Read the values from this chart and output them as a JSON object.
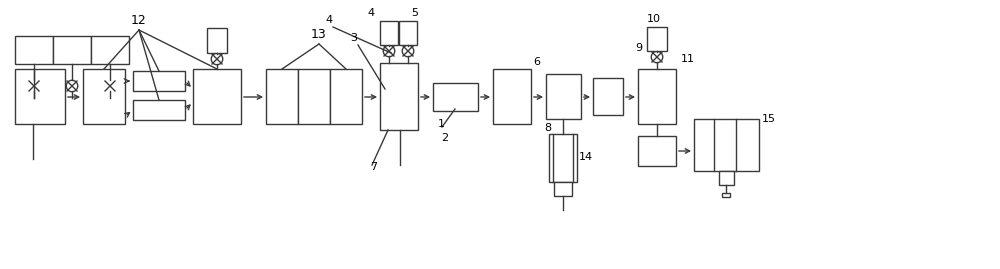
{
  "bg_color": "#ffffff",
  "line_color": "#3a3a3a",
  "label_color": "#000000",
  "figsize": [
    10.0,
    2.69
  ],
  "dpi": 100
}
